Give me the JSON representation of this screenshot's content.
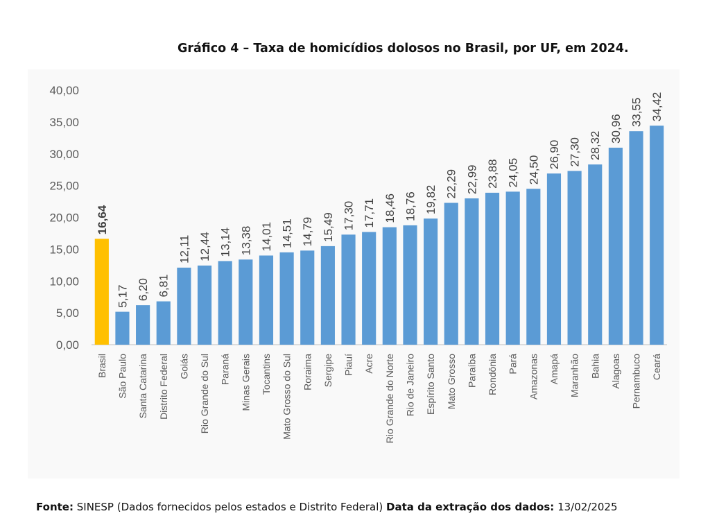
{
  "chart_data": {
    "type": "bar",
    "title": "Gráfico 4 – Taxa de homicídios dolosos no Brasil, por UF, em 2024.",
    "xlabel": "",
    "ylabel": "",
    "ylim": [
      0,
      40
    ],
    "yticks": [
      "0,00",
      "5,00",
      "10,00",
      "15,00",
      "20,00",
      "25,00",
      "30,00",
      "35,00",
      "40,00"
    ],
    "grid": false,
    "categories": [
      "Brasil",
      "São Paulo",
      "Santa Catarina",
      "Distrito Federal",
      "Goiás",
      "Rio Grande do Sul",
      "Paraná",
      "Minas Gerais",
      "Tocantins",
      "Mato Grosso do Sul",
      "Roraima",
      "Sergipe",
      "Piauí",
      "Acre",
      "Rio Grande do Norte",
      "Rio de Janeiro",
      "Espírito Santo",
      "Mato Grosso",
      "Paraíba",
      "Rondônia",
      "Pará",
      "Amazonas",
      "Amapá",
      "Maranhão",
      "Bahia",
      "Alagoas",
      "Pernambuco",
      "Ceará"
    ],
    "values": [
      16.64,
      5.17,
      6.2,
      6.81,
      12.11,
      12.44,
      13.14,
      13.38,
      14.01,
      14.51,
      14.79,
      15.49,
      17.3,
      17.71,
      18.46,
      18.76,
      19.82,
      22.29,
      22.99,
      23.88,
      24.05,
      24.5,
      26.9,
      27.3,
      28.32,
      30.96,
      33.55,
      34.42
    ],
    "value_labels": [
      "16,64",
      "5,17",
      "6,20",
      "6,81",
      "12,11",
      "12,44",
      "13,14",
      "13,38",
      "14,01",
      "14,51",
      "14,79",
      "15,49",
      "17,30",
      "17,71",
      "18,46",
      "18,76",
      "19,82",
      "22,29",
      "22,99",
      "23,88",
      "24,05",
      "24,50",
      "26,90",
      "27,30",
      "28,32",
      "30,96",
      "33,55",
      "34,42"
    ],
    "highlight_index": 0,
    "colors": {
      "bar": "#5b9bd5",
      "highlight": "#ffc000",
      "text": "#595959",
      "axis": "#bfbfbf"
    }
  },
  "footer": {
    "source_label": "Fonte:",
    "source_text": "SINESP (Dados fornecidos pelos estados e Distrito Federal)",
    "date_label": "Data da extração dos dados:",
    "date_value": "13/02/2025"
  }
}
